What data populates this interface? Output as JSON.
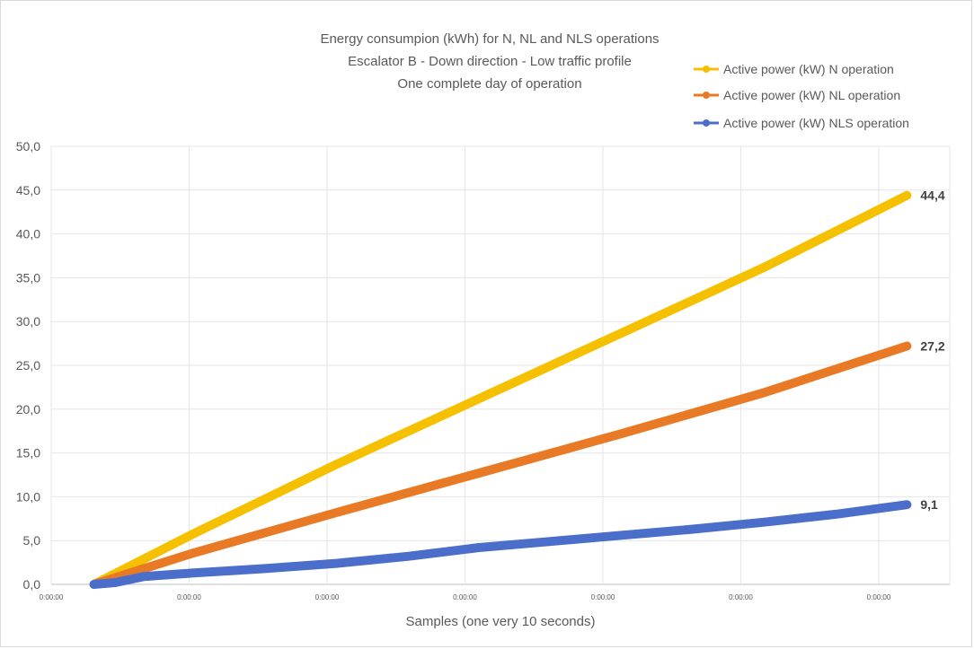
{
  "chart_data": {
    "type": "line",
    "title": [
      "Energy consumpion (kWh) for N, NL and NLS operations",
      "Escalator B - Down direction - Low traffic profile",
      "One complete day of operation"
    ],
    "xlabel": "Samples (one very 10 seconds)",
    "ylabel": "",
    "ylim": [
      0,
      50
    ],
    "yticks": [
      "0,0",
      "5,0",
      "10,0",
      "15,0",
      "20,0",
      "25,0",
      "30,0",
      "35,0",
      "40,0",
      "45,0",
      "50,0"
    ],
    "xlim": [
      0,
      6.3
    ],
    "xtick_labels": [
      "0:00:00",
      "0:00:00",
      "0:00:00",
      "0:00:00",
      "0:00:00",
      "0:00:00",
      "0:00:00"
    ],
    "grid": true,
    "legend_position": "top-right",
    "series": [
      {
        "name": "Active power (kW) N operation",
        "color": "#f5c000",
        "x": [
          0.3,
          1.0,
          2.0,
          3.0,
          4.0,
          5.0,
          6.0
        ],
        "y": [
          0,
          5.8,
          13.7,
          21.2,
          28.7,
          36.2,
          44.4
        ],
        "end_label": "44,4"
      },
      {
        "name": "Active power (kW) NL operation",
        "color": "#e97a25",
        "x": [
          0.3,
          1.0,
          2.0,
          3.0,
          4.0,
          5.0,
          6.0
        ],
        "y": [
          0,
          3.6,
          8.2,
          12.7,
          17.2,
          21.9,
          27.2
        ],
        "end_label": "27,2"
      },
      {
        "name": "Active power (kW) NLS operation",
        "color": "#4a6ec9",
        "x": [
          0.3,
          0.45,
          0.65,
          1.0,
          1.5,
          2.0,
          2.5,
          3.0,
          3.5,
          4.0,
          4.5,
          5.0,
          5.5,
          6.0
        ],
        "y": [
          0,
          0.2,
          0.9,
          1.3,
          1.8,
          2.4,
          3.2,
          4.2,
          4.9,
          5.6,
          6.3,
          7.1,
          8.0,
          9.1
        ],
        "end_label": "9,1"
      }
    ]
  }
}
